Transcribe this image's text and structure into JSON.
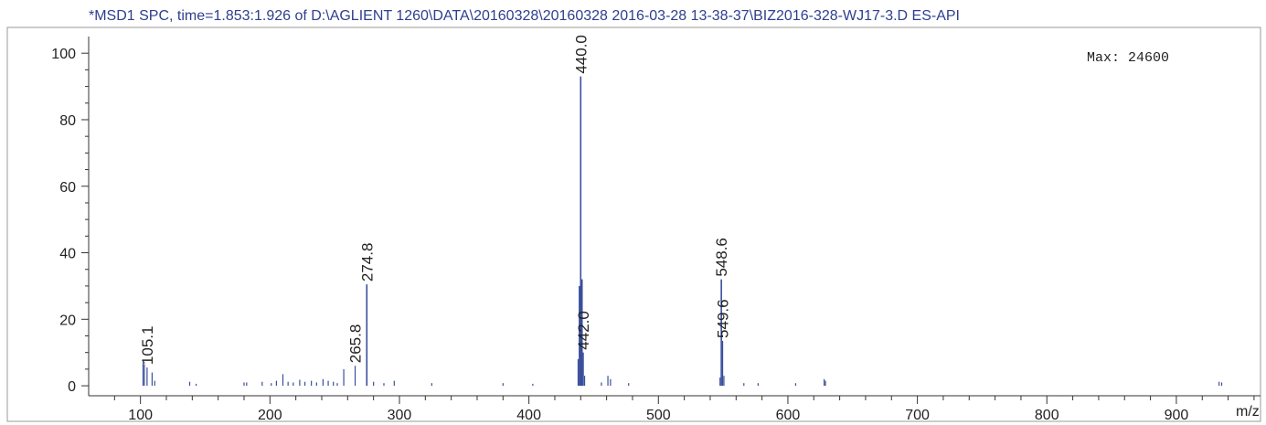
{
  "title": "*MSD1 SPC, time=1.853:1.926 of D:\\AGLIENT 1260\\DATA\\20160328\\20160328 2016-03-28 13-38-37\\BIZ2016-328-WJ17-3.D    ES-API",
  "max_label": "Max: 24600",
  "colors": {
    "spectrum": "#3a4f9c",
    "axis": "#333333",
    "title": "#2e3f8f"
  },
  "chart_data": {
    "type": "bar",
    "xlabel": "m/z",
    "ylabel": "",
    "xlim": [
      60,
      965
    ],
    "ylim": [
      -3,
      105
    ],
    "x_ticks": [
      100,
      200,
      300,
      400,
      500,
      600,
      700,
      800,
      900
    ],
    "y_ticks": [
      0,
      20,
      40,
      60,
      80,
      100
    ],
    "grid": false,
    "peaks": [
      {
        "x": 102.0,
        "y": 7.0
      },
      {
        "x": 103.0,
        "y": 6.5
      },
      {
        "x": 105.1,
        "y": 5.5,
        "label": "105.1"
      },
      {
        "x": 109.0,
        "y": 4.0
      },
      {
        "x": 111.0,
        "y": 1.5
      },
      {
        "x": 138.0,
        "y": 1.2
      },
      {
        "x": 143.0,
        "y": 0.6
      },
      {
        "x": 180.0,
        "y": 1.0
      },
      {
        "x": 182.0,
        "y": 1.0
      },
      {
        "x": 194.0,
        "y": 1.2
      },
      {
        "x": 201.0,
        "y": 0.8
      },
      {
        "x": 205.0,
        "y": 1.5
      },
      {
        "x": 210.0,
        "y": 3.5
      },
      {
        "x": 214.0,
        "y": 1.2
      },
      {
        "x": 218.0,
        "y": 1.0
      },
      {
        "x": 223.0,
        "y": 1.8
      },
      {
        "x": 227.0,
        "y": 1.2
      },
      {
        "x": 232.0,
        "y": 1.5
      },
      {
        "x": 236.0,
        "y": 1.0
      },
      {
        "x": 241.0,
        "y": 2.0
      },
      {
        "x": 245.0,
        "y": 1.5
      },
      {
        "x": 249.0,
        "y": 1.2
      },
      {
        "x": 252.0,
        "y": 0.8
      },
      {
        "x": 257.0,
        "y": 5.0
      },
      {
        "x": 265.8,
        "y": 6.0,
        "label": "265.8"
      },
      {
        "x": 274.8,
        "y": 30.5,
        "label": "274.8"
      },
      {
        "x": 280.0,
        "y": 1.2
      },
      {
        "x": 288.0,
        "y": 0.8
      },
      {
        "x": 296.0,
        "y": 1.5
      },
      {
        "x": 325.0,
        "y": 0.8
      },
      {
        "x": 380.0,
        "y": 0.8
      },
      {
        "x": 403.0,
        "y": 0.6
      },
      {
        "x": 438.0,
        "y": 8.0
      },
      {
        "x": 439.0,
        "y": 30.0
      },
      {
        "x": 440.0,
        "y": 93.0,
        "label": "440.0"
      },
      {
        "x": 441.0,
        "y": 32.0
      },
      {
        "x": 442.0,
        "y": 10.0,
        "label": "442.0"
      },
      {
        "x": 443.0,
        "y": 3.0
      },
      {
        "x": 456.0,
        "y": 1.0
      },
      {
        "x": 461.0,
        "y": 3.0
      },
      {
        "x": 463.0,
        "y": 2.0
      },
      {
        "x": 477.0,
        "y": 0.8
      },
      {
        "x": 547.6,
        "y": 2.5
      },
      {
        "x": 548.6,
        "y": 32.0,
        "label": "548.6"
      },
      {
        "x": 549.6,
        "y": 13.5,
        "label": "549.6"
      },
      {
        "x": 550.6,
        "y": 3.0
      },
      {
        "x": 566.0,
        "y": 0.8
      },
      {
        "x": 577.0,
        "y": 0.8
      },
      {
        "x": 606.0,
        "y": 0.8
      },
      {
        "x": 628.0,
        "y": 2.0
      },
      {
        "x": 629.0,
        "y": 1.5
      },
      {
        "x": 933.0,
        "y": 1.2
      },
      {
        "x": 935.0,
        "y": 1.0
      }
    ]
  }
}
